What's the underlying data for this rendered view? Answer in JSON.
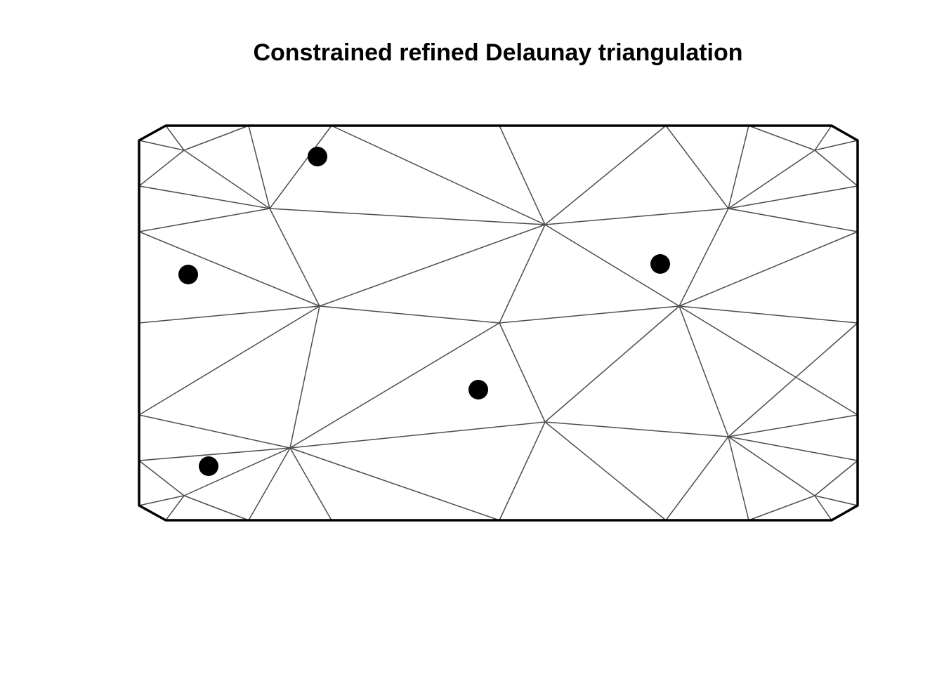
{
  "title": "Constrained refined Delaunay triangulation",
  "colors": {
    "edge": "#4d4d4d",
    "boundary": "#000000",
    "points": "#000000",
    "background": "#ffffff"
  }
}
